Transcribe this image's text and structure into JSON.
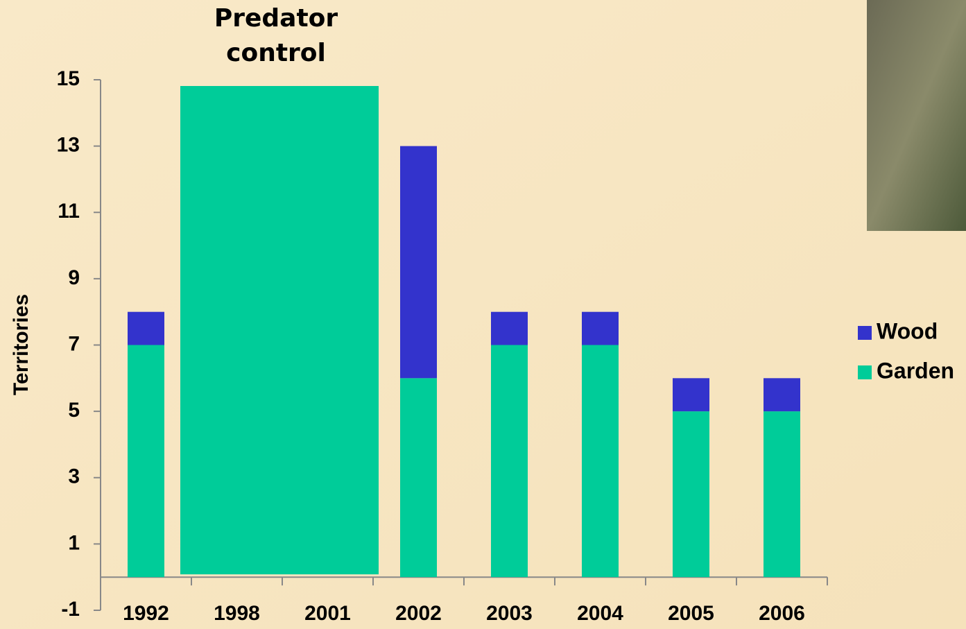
{
  "chart_data": {
    "type": "stacked_bar",
    "annotation": [
      "Predator",
      "control"
    ],
    "y_label": "Territories",
    "categories": [
      "1992",
      "1998",
      "2001",
      "2002",
      "2003",
      "2004",
      "2005",
      "2006"
    ],
    "series": [
      {
        "name": "Garden",
        "color": "#00cc99",
        "values": [
          7,
          null,
          null,
          6,
          7,
          7,
          5,
          5
        ]
      },
      {
        "name": "Wood",
        "color": "#3333cc",
        "values": [
          1,
          null,
          null,
          7,
          1,
          1,
          1,
          1
        ]
      }
    ],
    "ylim": [
      -1,
      15
    ],
    "yticks": [
      -1,
      1,
      3,
      5,
      7,
      9,
      11,
      13,
      15
    ],
    "legend": "right"
  }
}
